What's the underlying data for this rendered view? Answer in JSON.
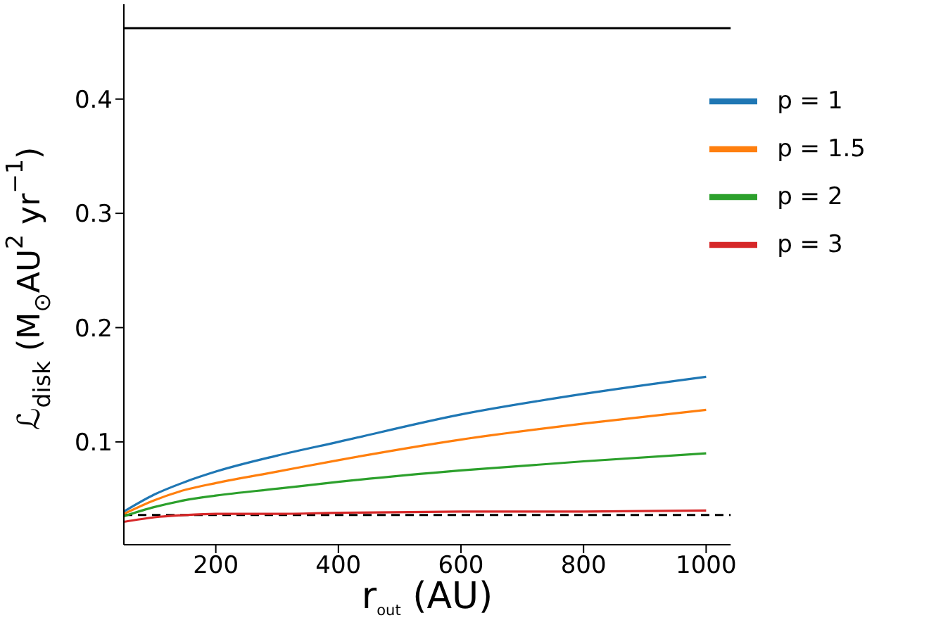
{
  "chart_data": {
    "type": "line",
    "xlabel": "r$_{out}$ (AU)",
    "ylabel": "ℒ$_{disk}$ (M$_{⊙}$AU$^{2}$ yr$^{−1}$)",
    "x": [
      50,
      100,
      150,
      200,
      300,
      400,
      600,
      800,
      1000
    ],
    "series": [
      {
        "name": "p = 1",
        "color": "#1f77b4",
        "values": [
          0.039,
          0.054,
          0.065,
          0.074,
          0.088,
          0.1,
          0.124,
          0.142,
          0.157
        ]
      },
      {
        "name": "p = 1.5",
        "color": "#ff7f0e",
        "values": [
          0.037,
          0.049,
          0.058,
          0.064,
          0.074,
          0.084,
          0.102,
          0.116,
          0.128
        ]
      },
      {
        "name": "p = 2",
        "color": "#2ca02c",
        "values": [
          0.035,
          0.043,
          0.049,
          0.053,
          0.059,
          0.065,
          0.075,
          0.083,
          0.09
        ]
      },
      {
        "name": "p = 3",
        "color": "#d62728",
        "values": [
          0.03,
          0.034,
          0.036,
          0.037,
          0.037,
          0.038,
          0.039,
          0.039,
          0.04
        ]
      }
    ],
    "xlim": [
      50,
      1040
    ],
    "xticks": [
      200,
      400,
      600,
      800,
      1000
    ],
    "ylim": [
      0.01,
      0.483
    ],
    "yticks": [
      0.1,
      0.2,
      0.3,
      0.4
    ],
    "ref_lines": [
      {
        "axis": "y",
        "value": 0.462,
        "color": "#000000",
        "line_style": "solid"
      },
      {
        "axis": "y",
        "value": 0.036,
        "color": "#000000",
        "line_style": "dashed"
      }
    ],
    "grid": false,
    "legend": "top right",
    "marker": "none",
    "line_style": "solid"
  }
}
